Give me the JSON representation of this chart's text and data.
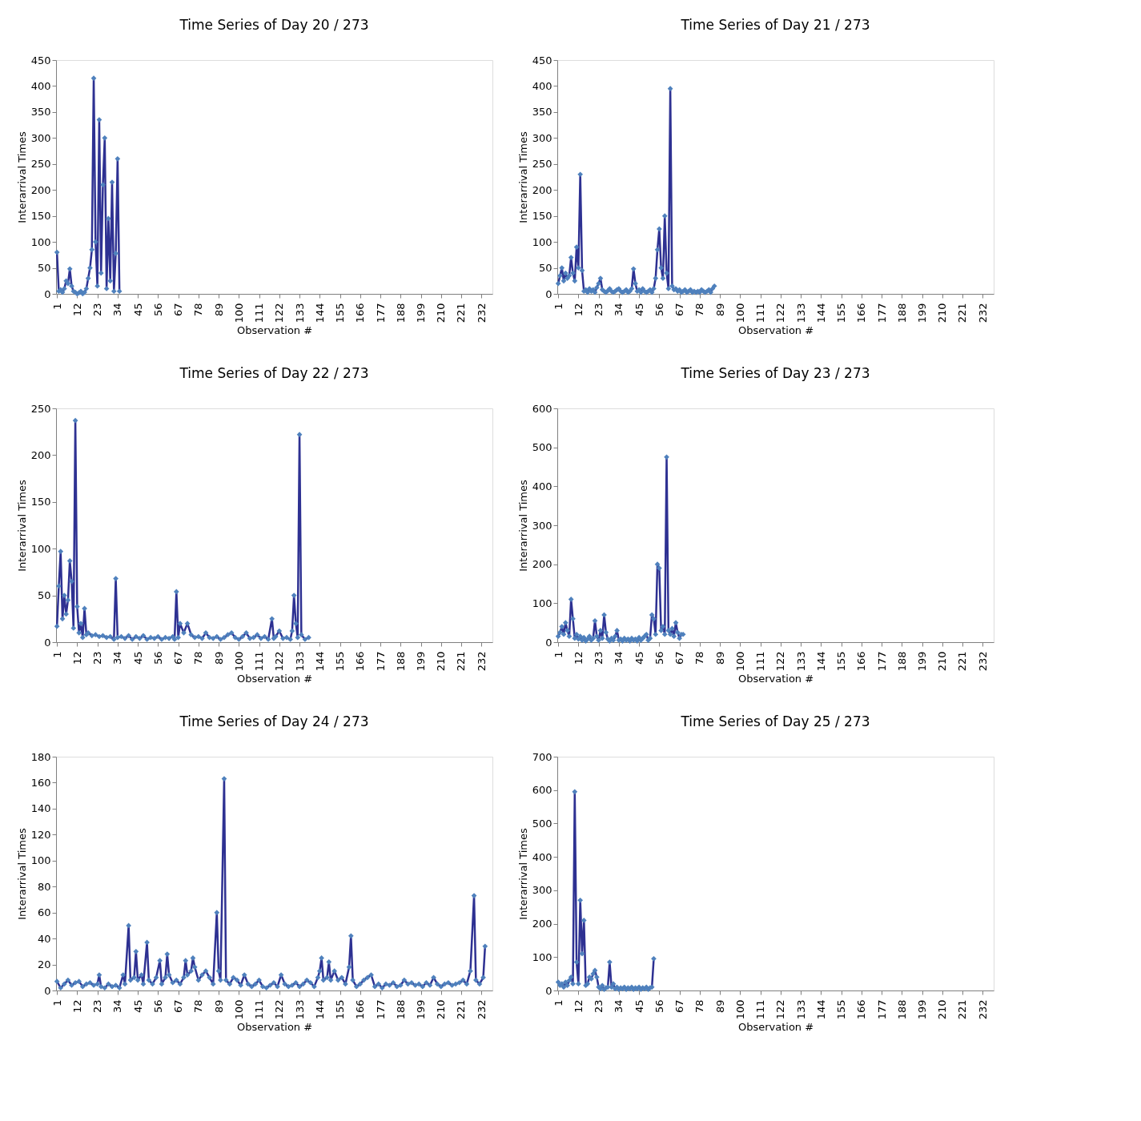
{
  "chart_data": [
    {
      "type": "line",
      "title": "Time Series of Day 20 / 273",
      "xlabel": "Observation #",
      "ylabel": "Interarrival Times",
      "marker": "diamond",
      "xlim": [
        0.5,
        238
      ],
      "xticks": [
        1,
        12,
        23,
        34,
        45,
        56,
        67,
        78,
        89,
        100,
        111,
        122,
        133,
        144,
        155,
        166,
        177,
        188,
        199,
        210,
        221,
        232
      ],
      "ylim": [
        0,
        450
      ],
      "yticks": [
        0,
        50,
        100,
        150,
        200,
        250,
        300,
        350,
        400,
        450
      ],
      "x": [
        1,
        2,
        3,
        4,
        5,
        6,
        7,
        8,
        9,
        10,
        11,
        12,
        13,
        14,
        15,
        16,
        17,
        18,
        19,
        20,
        21,
        22,
        23,
        24,
        25,
        26,
        27,
        28,
        29,
        30,
        31,
        32,
        33,
        34,
        35
      ],
      "series": [
        {
          "color": "#2e3192",
          "values": [
            80,
            5,
            8,
            3,
            10,
            25,
            20,
            48,
            15,
            5,
            3,
            0,
            2,
            5,
            0,
            3,
            10,
            30,
            50,
            85,
            415,
            100,
            15,
            335,
            40,
            210,
            300,
            10,
            145,
            25,
            215,
            5,
            78,
            260,
            5
          ]
        }
      ]
    },
    {
      "type": "line",
      "title": "Time Series of Day 21 / 273",
      "xlabel": "Observation #",
      "ylabel": "Interarrival Times",
      "marker": "diamond",
      "xlim": [
        0.5,
        238
      ],
      "xticks": [
        1,
        12,
        23,
        34,
        45,
        56,
        67,
        78,
        89,
        100,
        111,
        122,
        133,
        144,
        155,
        166,
        177,
        188,
        199,
        210,
        221,
        232
      ],
      "ylim": [
        0,
        450
      ],
      "yticks": [
        0,
        50,
        100,
        150,
        200,
        250,
        300,
        350,
        400,
        450
      ],
      "x": [
        1,
        2,
        3,
        4,
        5,
        6,
        7,
        8,
        9,
        10,
        11,
        12,
        13,
        14,
        15,
        16,
        17,
        18,
        19,
        20,
        21,
        22,
        23,
        24,
        25,
        26,
        27,
        28,
        29,
        30,
        31,
        32,
        33,
        34,
        35,
        36,
        37,
        38,
        39,
        40,
        41,
        42,
        43,
        44,
        45,
        46,
        47,
        48,
        49,
        50,
        51,
        52,
        53,
        54,
        55,
        56,
        57,
        58,
        59,
        60,
        61,
        62,
        63,
        64,
        65,
        66,
        67,
        68,
        69,
        70,
        71,
        72,
        73,
        74,
        75,
        76,
        77,
        78,
        79,
        80,
        81,
        82,
        83,
        84,
        85,
        86
      ],
      "series": [
        {
          "color": "#2e3192",
          "values": [
            20,
            35,
            50,
            25,
            40,
            30,
            35,
            70,
            40,
            25,
            90,
            50,
            230,
            45,
            5,
            8,
            3,
            10,
            5,
            8,
            3,
            12,
            20,
            30,
            8,
            5,
            3,
            6,
            10,
            5,
            3,
            5,
            8,
            10,
            5,
            3,
            5,
            8,
            3,
            5,
            10,
            48,
            20,
            5,
            8,
            3,
            10,
            5,
            3,
            5,
            8,
            3,
            10,
            30,
            85,
            125,
            50,
            30,
            150,
            40,
            10,
            395,
            15,
            8,
            10,
            5,
            8,
            3,
            5,
            8,
            3,
            5,
            8,
            3,
            5,
            3,
            5,
            3,
            8,
            5,
            3,
            5,
            8,
            3,
            10,
            15
          ]
        }
      ]
    },
    {
      "type": "line",
      "title": "Time Series of Day 22 / 273",
      "xlabel": "Observation #",
      "ylabel": "Interarrival Times",
      "marker": "diamond",
      "xlim": [
        0.5,
        238
      ],
      "xticks": [
        1,
        12,
        23,
        34,
        45,
        56,
        67,
        78,
        89,
        100,
        111,
        122,
        133,
        144,
        155,
        166,
        177,
        188,
        199,
        210,
        221,
        232
      ],
      "ylim": [
        0,
        250
      ],
      "yticks": [
        0,
        50,
        100,
        150,
        200,
        250
      ],
      "x": [
        1,
        2,
        3,
        4,
        5,
        6,
        7,
        8,
        9,
        10,
        11,
        12,
        13,
        14,
        15,
        16,
        17,
        18,
        20,
        22,
        24,
        26,
        28,
        30,
        32,
        33,
        34,
        36,
        38,
        40,
        42,
        44,
        46,
        48,
        50,
        52,
        54,
        56,
        58,
        60,
        62,
        64,
        65,
        66,
        67,
        68,
        70,
        72,
        74,
        76,
        78,
        80,
        82,
        84,
        86,
        88,
        90,
        92,
        94,
        96,
        98,
        100,
        102,
        104,
        106,
        108,
        110,
        112,
        114,
        116,
        118,
        119,
        120,
        122,
        124,
        126,
        128,
        129,
        130,
        131,
        132,
        133,
        134,
        136,
        138
      ],
      "series": [
        {
          "color": "#2e3192",
          "values": [
            17,
            60,
            97,
            25,
            50,
            30,
            45,
            87,
            65,
            15,
            237,
            38,
            10,
            20,
            5,
            36,
            8,
            10,
            7,
            8,
            6,
            7,
            5,
            6,
            3,
            68,
            5,
            6,
            4,
            7,
            3,
            6,
            4,
            7,
            3,
            5,
            4,
            6,
            3,
            5,
            4,
            6,
            3,
            54,
            5,
            20,
            10,
            20,
            8,
            5,
            6,
            4,
            10,
            5,
            4,
            6,
            3,
            5,
            8,
            10,
            5,
            3,
            6,
            10,
            4,
            5,
            8,
            4,
            6,
            3,
            25,
            4,
            6,
            12,
            4,
            5,
            3,
            12,
            50,
            20,
            5,
            222,
            8,
            3,
            5
          ]
        }
      ]
    },
    {
      "type": "line",
      "title": "Time Series of Day 23 / 273",
      "xlabel": "Observation #",
      "ylabel": "Interarrival Times",
      "marker": "diamond",
      "xlim": [
        0.5,
        238
      ],
      "xticks": [
        1,
        12,
        23,
        34,
        45,
        56,
        67,
        78,
        89,
        100,
        111,
        122,
        133,
        144,
        155,
        166,
        177,
        188,
        199,
        210,
        221,
        232
      ],
      "ylim": [
        0,
        600
      ],
      "yticks": [
        0,
        100,
        200,
        300,
        400,
        500,
        600
      ],
      "x": [
        1,
        2,
        3,
        4,
        5,
        6,
        7,
        8,
        9,
        10,
        11,
        12,
        13,
        14,
        15,
        16,
        17,
        18,
        19,
        20,
        21,
        22,
        23,
        24,
        25,
        26,
        27,
        28,
        29,
        30,
        31,
        32,
        33,
        34,
        35,
        36,
        37,
        38,
        39,
        40,
        41,
        42,
        43,
        44,
        45,
        46,
        47,
        48,
        49,
        50,
        51,
        52,
        53,
        54,
        55,
        56,
        57,
        58,
        59,
        60,
        61,
        62,
        63,
        64,
        65,
        66,
        67,
        68,
        69
      ],
      "series": [
        {
          "color": "#2e3192",
          "values": [
            15,
            25,
            40,
            20,
            50,
            30,
            15,
            110,
            60,
            10,
            20,
            8,
            15,
            5,
            12,
            3,
            8,
            15,
            5,
            10,
            55,
            15,
            5,
            30,
            10,
            70,
            25,
            8,
            3,
            10,
            5,
            15,
            30,
            5,
            8,
            3,
            10,
            5,
            8,
            3,
            10,
            5,
            8,
            3,
            12,
            5,
            10,
            15,
            20,
            5,
            10,
            70,
            60,
            20,
            200,
            190,
            30,
            40,
            20,
            475,
            30,
            20,
            35,
            15,
            50,
            25,
            10,
            20,
            20
          ]
        }
      ]
    },
    {
      "type": "line",
      "title": "Time Series of Day 24 / 273",
      "xlabel": "Observation #",
      "ylabel": "Interarrival Times",
      "marker": "diamond",
      "xlim": [
        0.5,
        238
      ],
      "xticks": [
        1,
        12,
        23,
        34,
        45,
        56,
        67,
        78,
        89,
        100,
        111,
        122,
        133,
        144,
        155,
        166,
        177,
        188,
        199,
        210,
        221,
        232
      ],
      "ylim": [
        0,
        180
      ],
      "yticks": [
        0,
        20,
        40,
        60,
        80,
        100,
        120,
        140,
        160,
        180
      ],
      "x": [
        1,
        3,
        5,
        7,
        9,
        11,
        13,
        15,
        17,
        19,
        21,
        23,
        24,
        25,
        27,
        29,
        31,
        33,
        35,
        37,
        38,
        40,
        41,
        43,
        44,
        45,
        47,
        48,
        50,
        51,
        53,
        55,
        57,
        58,
        60,
        61,
        62,
        64,
        66,
        68,
        70,
        71,
        72,
        74,
        75,
        76,
        78,
        80,
        82,
        84,
        86,
        88,
        89,
        90,
        92,
        93,
        95,
        97,
        99,
        101,
        103,
        105,
        107,
        109,
        111,
        113,
        115,
        117,
        119,
        121,
        123,
        125,
        127,
        129,
        131,
        133,
        135,
        137,
        139,
        141,
        143,
        144,
        145,
        146,
        148,
        149,
        150,
        152,
        154,
        156,
        158,
        160,
        161,
        162,
        164,
        166,
        168,
        170,
        172,
        174,
        176,
        178,
        180,
        182,
        184,
        186,
        188,
        190,
        192,
        194,
        196,
        198,
        200,
        202,
        204,
        206,
        208,
        210,
        212,
        214,
        216,
        218,
        220,
        222,
        224,
        226,
        228,
        229,
        231,
        233,
        234
      ],
      "series": [
        {
          "color": "#2e3192",
          "values": [
            7,
            2,
            5,
            8,
            4,
            6,
            7,
            3,
            5,
            6,
            4,
            5,
            12,
            3,
            2,
            5,
            3,
            4,
            2,
            12,
            5,
            50,
            8,
            10,
            30,
            8,
            12,
            5,
            37,
            8,
            5,
            10,
            23,
            5,
            10,
            28,
            12,
            6,
            8,
            5,
            10,
            23,
            12,
            15,
            25,
            18,
            8,
            12,
            15,
            10,
            5,
            60,
            15,
            8,
            163,
            8,
            5,
            10,
            8,
            4,
            12,
            5,
            3,
            5,
            8,
            3,
            2,
            4,
            6,
            3,
            12,
            5,
            3,
            4,
            6,
            3,
            5,
            8,
            6,
            3,
            10,
            15,
            25,
            8,
            10,
            22,
            8,
            15,
            8,
            10,
            5,
            18,
            42,
            8,
            3,
            5,
            8,
            10,
            12,
            3,
            5,
            2,
            5,
            4,
            6,
            3,
            4,
            8,
            5,
            6,
            4,
            5,
            3,
            6,
            4,
            10,
            5,
            3,
            5,
            6,
            4,
            5,
            6,
            8,
            5,
            15,
            73,
            8,
            5,
            10,
            34
          ]
        }
      ]
    },
    {
      "type": "line",
      "title": "Time Series of Day 25 / 273",
      "xlabel": "Observation #",
      "ylabel": "Interarrival Times",
      "marker": "diamond",
      "xlim": [
        0.5,
        238
      ],
      "xticks": [
        1,
        12,
        23,
        34,
        45,
        56,
        67,
        78,
        89,
        100,
        111,
        122,
        133,
        144,
        155,
        166,
        177,
        188,
        199,
        210,
        221,
        232
      ],
      "ylim": [
        0,
        700
      ],
      "yticks": [
        0,
        100,
        200,
        300,
        400,
        500,
        600,
        700
      ],
      "x": [
        1,
        2,
        3,
        4,
        5,
        6,
        7,
        8,
        9,
        10,
        11,
        12,
        13,
        14,
        15,
        16,
        17,
        18,
        19,
        20,
        21,
        22,
        23,
        24,
        25,
        26,
        27,
        28,
        29,
        30,
        31,
        32,
        33,
        34,
        35,
        36,
        37,
        38,
        39,
        40,
        41,
        42,
        43,
        44,
        45,
        46,
        47,
        48,
        49,
        50,
        51,
        52,
        53
      ],
      "series": [
        {
          "color": "#2e3192",
          "values": [
            25,
            15,
            20,
            10,
            25,
            15,
            30,
            40,
            20,
            595,
            85,
            20,
            270,
            110,
            210,
            15,
            20,
            40,
            35,
            50,
            60,
            40,
            10,
            5,
            15,
            3,
            8,
            10,
            85,
            10,
            20,
            5,
            10,
            3,
            8,
            5,
            10,
            3,
            8,
            5,
            10,
            3,
            8,
            5,
            10,
            3,
            8,
            5,
            10,
            3,
            8,
            10,
            95
          ]
        }
      ]
    }
  ]
}
